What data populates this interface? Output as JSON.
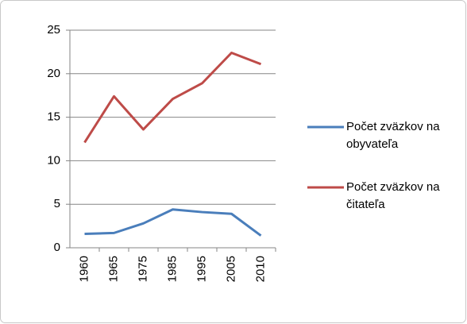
{
  "chart_data": {
    "type": "line",
    "categories": [
      "1960",
      "1965",
      "1975",
      "1985",
      "1995",
      "2005",
      "2010"
    ],
    "series": [
      {
        "name": "Počet zväzkov na obyvateľa",
        "color": "#4a7ebb",
        "values": [
          1.6,
          1.7,
          2.8,
          4.4,
          4.1,
          3.9,
          1.4
        ]
      },
      {
        "name": "Počet zväzkov na čitateľa",
        "color": "#be4b48",
        "values": [
          12.1,
          17.4,
          13.6,
          17.1,
          18.9,
          22.4,
          21.1
        ]
      }
    ],
    "ylim": [
      0,
      25
    ],
    "yticks": [
      0,
      5,
      10,
      15,
      20,
      25
    ],
    "grid": true,
    "legend": "right"
  }
}
